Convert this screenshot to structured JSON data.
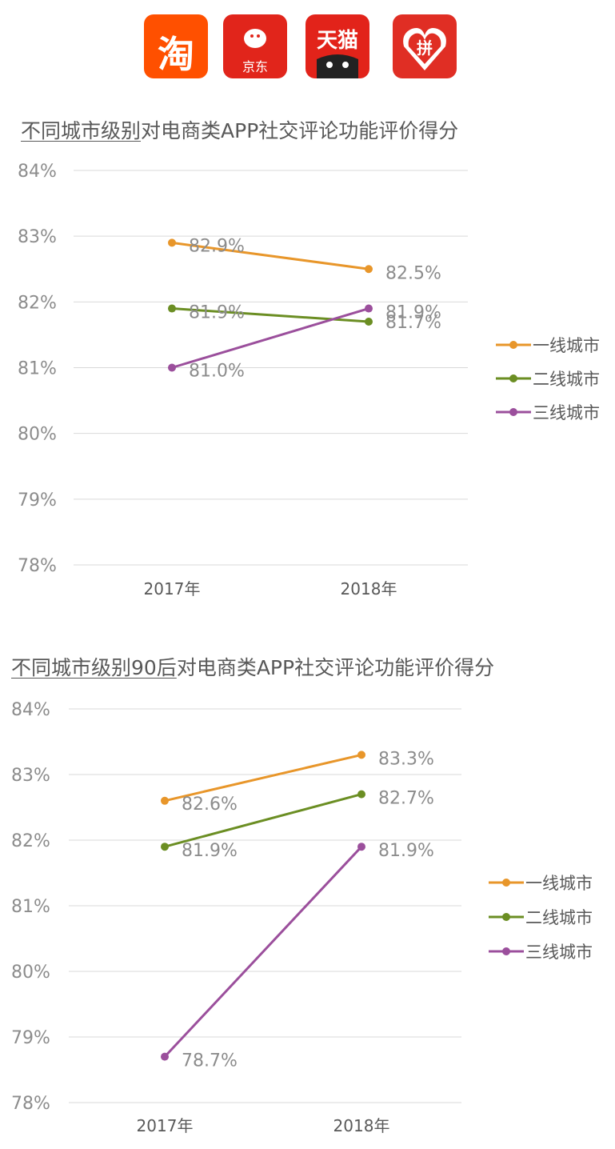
{
  "logos": [
    {
      "name": "taobao",
      "text": "淘",
      "color": "#ff5000"
    },
    {
      "name": "jd",
      "text": "京东",
      "color": "#e1251b"
    },
    {
      "name": "tmall",
      "text": "天猫",
      "color": "#e2231a"
    },
    {
      "name": "pinduoduo",
      "text": "拼",
      "color": "#e02e24"
    }
  ],
  "colors": {
    "tier1": "#e8962a",
    "tier2": "#6b8e23",
    "tier3": "#9b4f9c",
    "grid": "#d9d9d9",
    "text": "#595959"
  },
  "chart_data": [
    {
      "type": "line",
      "title_underlined": "不同城市级别",
      "title_rest": "对电商类APP社交评论功能评价得分",
      "categories": [
        "2017年",
        "2018年"
      ],
      "y_ticks": [
        "84%",
        "83%",
        "82%",
        "81%",
        "80%",
        "79%",
        "78%"
      ],
      "ylim": [
        78,
        84
      ],
      "series": [
        {
          "name": "一线城市",
          "values": [
            82.9,
            82.5
          ],
          "labels": [
            "82.9%",
            "82.5%"
          ]
        },
        {
          "name": "二线城市",
          "values": [
            81.9,
            81.7
          ],
          "labels": [
            "81.9%",
            "81.7%"
          ]
        },
        {
          "name": "三线城市",
          "values": [
            81.0,
            81.9
          ],
          "labels": [
            "81.0%",
            "81.9%"
          ]
        }
      ],
      "legend": "right"
    },
    {
      "type": "line",
      "title_underlined": "不同城市级别90后",
      "title_rest": "对电商类APP社交评论功能评价得分",
      "categories": [
        "2017年",
        "2018年"
      ],
      "y_ticks": [
        "84%",
        "83%",
        "82%",
        "81%",
        "80%",
        "79%",
        "78%"
      ],
      "ylim": [
        78,
        84
      ],
      "series": [
        {
          "name": "一线城市",
          "values": [
            82.6,
            83.3
          ],
          "labels": [
            "82.6%",
            "83.3%"
          ]
        },
        {
          "name": "二线城市",
          "values": [
            81.9,
            82.7
          ],
          "labels": [
            "81.9%",
            "82.7%"
          ]
        },
        {
          "name": "三线城市",
          "values": [
            78.7,
            81.9
          ],
          "labels": [
            "78.7%",
            "81.9%"
          ]
        }
      ],
      "legend": "right"
    }
  ]
}
